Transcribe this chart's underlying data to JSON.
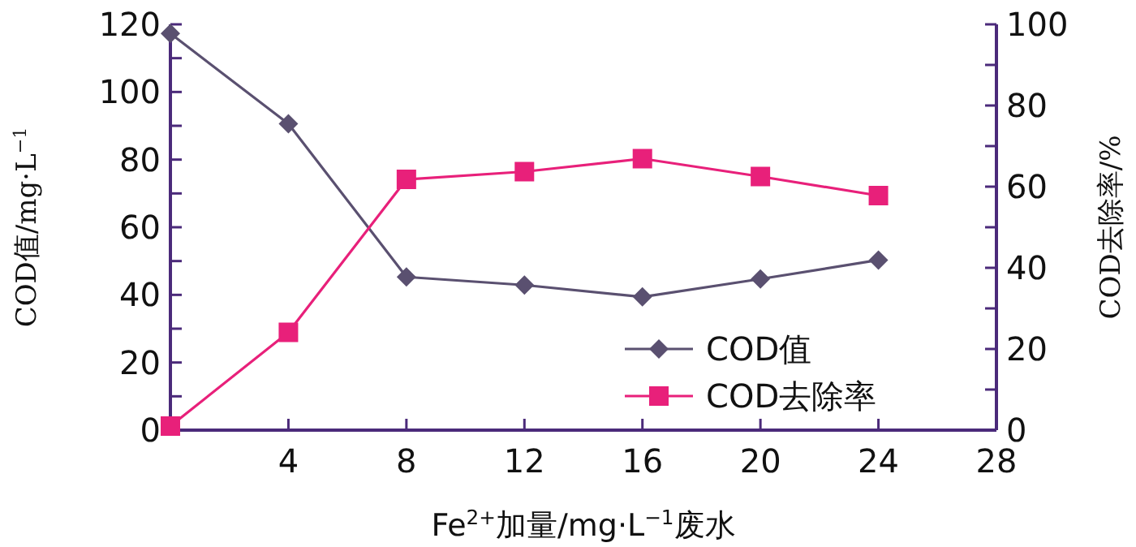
{
  "chart_data": {
    "type": "line",
    "xlabel": "Fe$^{2+}$加量/mg·L$^{−1}$废水",
    "ylabel": "COD值/mg·L$^{−1}$",
    "y2label": "COD去除率/%",
    "x": [
      0,
      4,
      8,
      12,
      16,
      20,
      24
    ],
    "series": [
      {
        "name": "COD值",
        "color": "#5a5070",
        "marker": "diamond",
        "values": [
          117.3,
          90.6,
          45.3,
          42.9,
          39.4,
          44.7,
          50.3
        ]
      },
      {
        "name": "COD去除率",
        "color": "#e8207a",
        "marker": "square",
        "axis": "y2",
        "values": [
          1,
          24.1,
          61.8,
          63.7,
          66.9,
          62.5,
          57.8
        ]
      }
    ],
    "xlim": [
      0,
      28
    ],
    "xticks": [
      4,
      8,
      12,
      16,
      20,
      24,
      28
    ],
    "ylim": [
      0,
      120
    ],
    "yticks": [
      0,
      {
        "value": 10,
        "label": null
      },
      20,
      {
        "value": 30,
        "label": null
      },
      40,
      {
        "value": 50,
        "label": null
      },
      60,
      {
        "value": 70,
        "label": null
      },
      80,
      {
        "value": 90,
        "label": null
      },
      100,
      {
        "value": 110,
        "label": null
      },
      120
    ],
    "y2lim": [
      0,
      100
    ],
    "y2ticks": [
      0,
      {
        "value": 10,
        "label": null
      },
      20,
      {
        "value": 30,
        "label": null
      },
      40,
      {
        "value": 50,
        "label": null
      },
      60,
      {
        "value": 70,
        "label": null
      },
      80,
      {
        "value": 90,
        "label": null
      },
      100
    ],
    "legend": "bottom right",
    "line_style": "solid"
  }
}
